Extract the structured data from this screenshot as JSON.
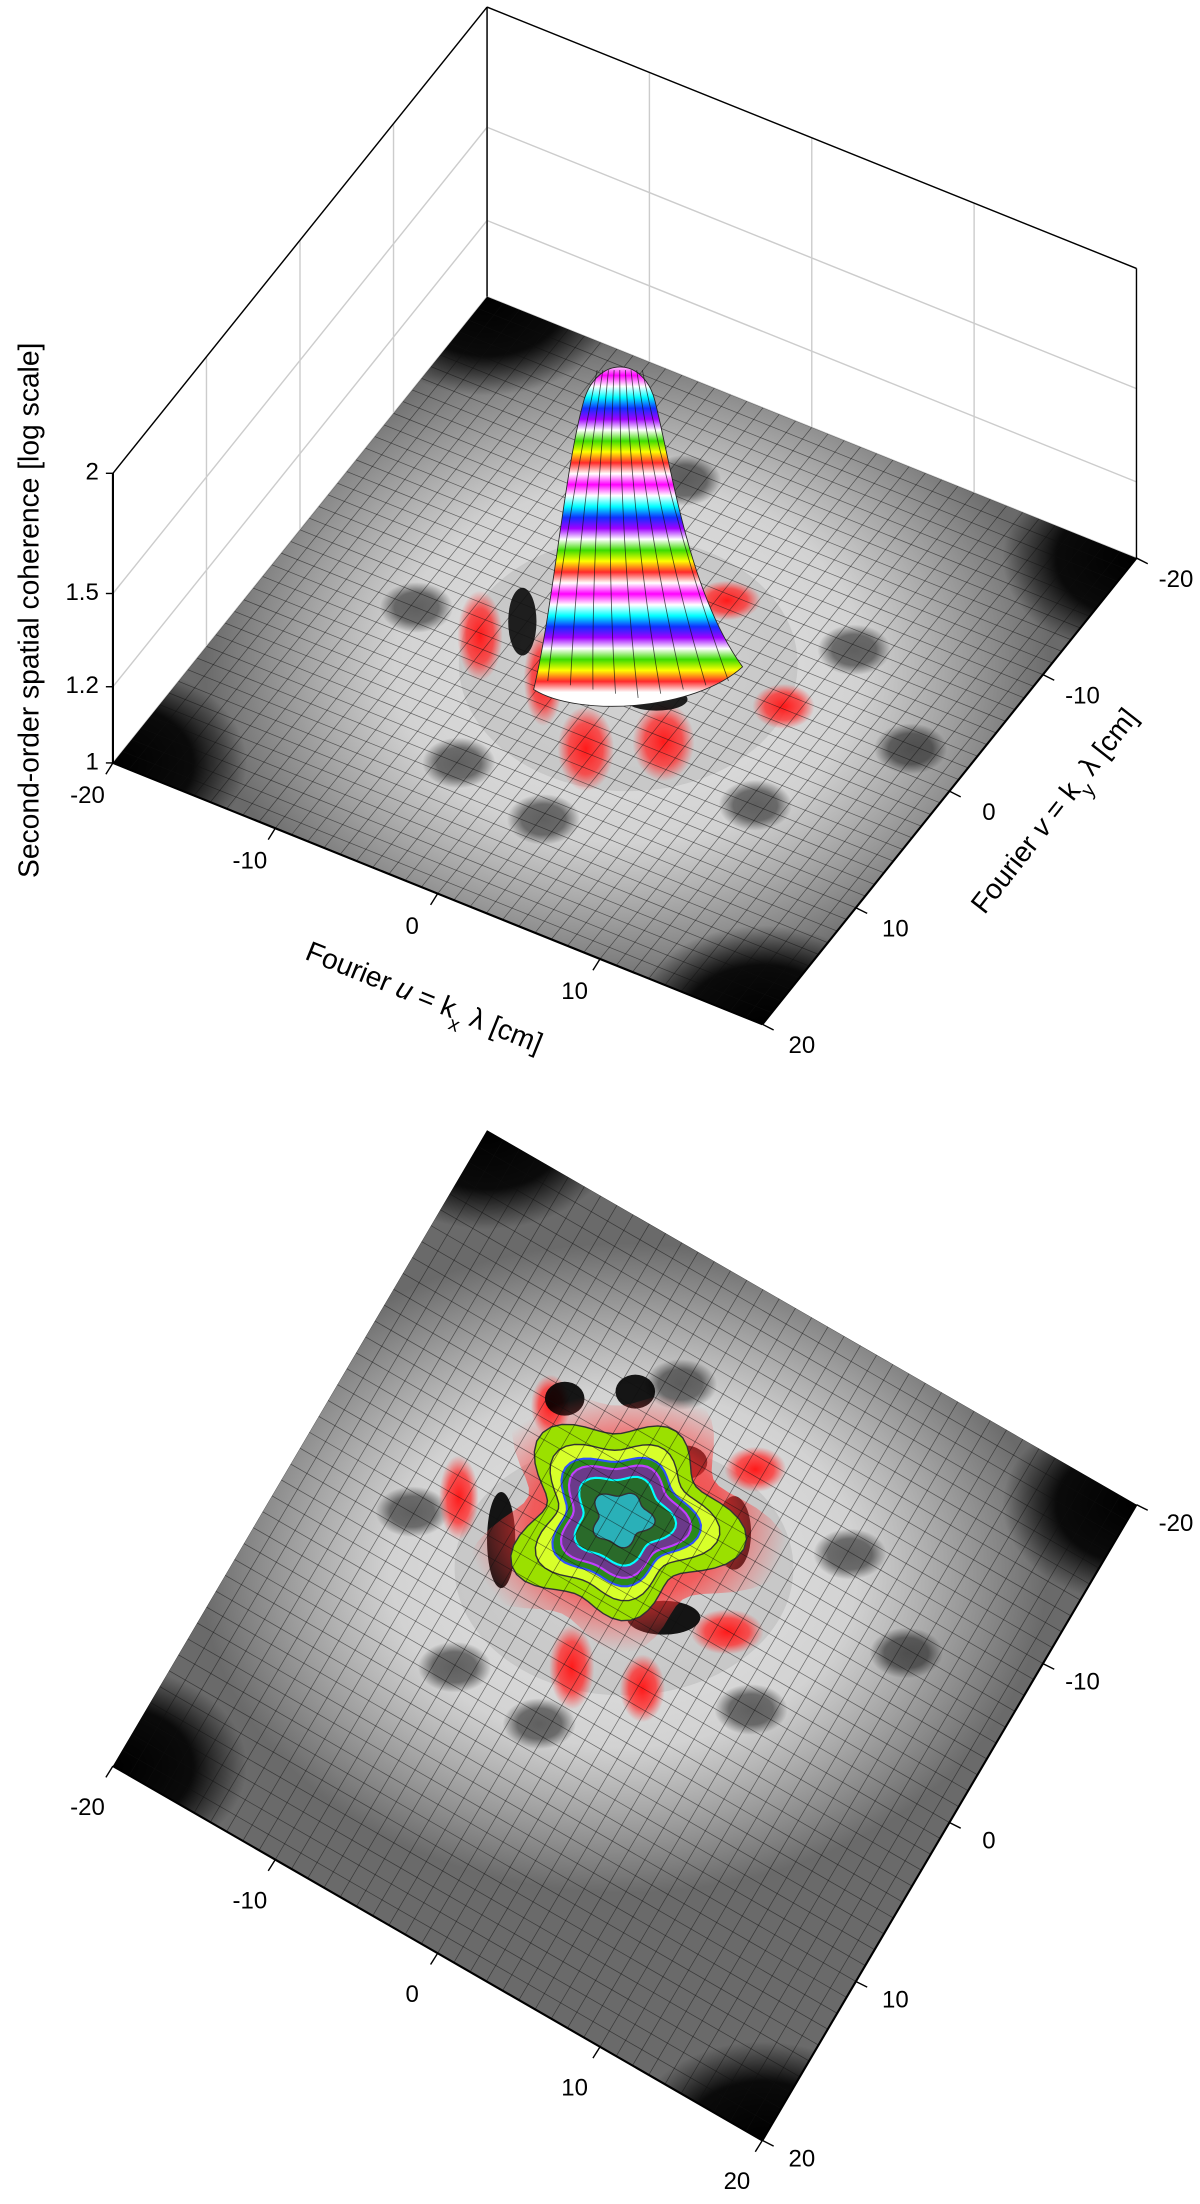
{
  "chart_data": [
    {
      "type": "surface3d",
      "x_label": [
        "Fourier ",
        "u",
        " = k",
        "x",
        " λ [cm]"
      ],
      "y_label": [
        "Fourier ",
        "v",
        " = k",
        "y",
        " λ [cm]"
      ],
      "z_label": "Second-order spatial coherence [log scale]",
      "xlim": [
        -20,
        20
      ],
      "xticks": [
        -20,
        -10,
        0,
        10
      ],
      "ylim": [
        -20,
        20
      ],
      "yticks": [
        -20,
        -10,
        0,
        10,
        20
      ],
      "zlim": [
        1,
        2
      ],
      "zticks": [
        2,
        1.5,
        1.2,
        1
      ],
      "zscale": "log",
      "grid": true
    },
    {
      "type": "contour",
      "xlim": [
        -20,
        20
      ],
      "xticks": [
        -20,
        -10,
        0,
        10,
        20
      ],
      "ylim": [
        -20,
        20
      ],
      "yticks": [
        -20,
        -10,
        0,
        10,
        20
      ]
    }
  ]
}
